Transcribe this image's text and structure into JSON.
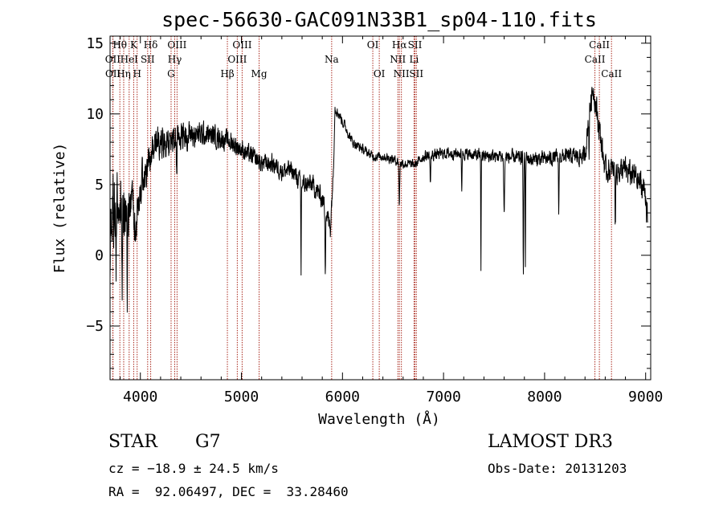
{
  "chart_data": {
    "type": "line",
    "title": "spec-56630-GAC091N33B1_sp04-110.fits",
    "xlabel": "Wavelength (Å)",
    "ylabel": "Flux (relative)",
    "xlim": [
      3700,
      9050
    ],
    "ylim": [
      -8.8,
      15.5
    ],
    "x_ticks": [
      4000,
      5000,
      6000,
      7000,
      8000,
      9000
    ],
    "y_ticks": [
      -5,
      0,
      5,
      10,
      15
    ],
    "x_tick_labels": [
      "4000",
      "5000",
      "6000",
      "7000",
      "8000",
      "9000"
    ],
    "y_tick_labels": [
      "−5",
      "0",
      "5",
      "10",
      "15"
    ],
    "line_color": "#000000",
    "marker_color": "#aa2a1e",
    "lines": [
      {
        "label": "Hθ",
        "wl": 3797,
        "row": 0
      },
      {
        "label": "K",
        "wl": 3934,
        "row": 0
      },
      {
        "label": "Hδ",
        "wl": 4102,
        "row": 0
      },
      {
        "label": "OIII",
        "wl": 4363,
        "row": 0
      },
      {
        "label": "OIII",
        "wl": 5007,
        "row": 0
      },
      {
        "label": "OI",
        "wl": 6300,
        "row": 0
      },
      {
        "label": "Hα",
        "wl": 6563,
        "row": 0
      },
      {
        "label": "SII",
        "wl": 6717,
        "row": 0
      },
      {
        "label": "CaII",
        "wl": 8542,
        "row": 0
      },
      {
        "label": "OII",
        "wl": 3727,
        "row": 1
      },
      {
        "label": "HeI",
        "wl": 3889,
        "row": 1
      },
      {
        "label": "SII",
        "wl": 4072,
        "row": 1
      },
      {
        "label": "Hγ",
        "wl": 4340,
        "row": 1
      },
      {
        "label": "OIII",
        "wl": 4959,
        "row": 1
      },
      {
        "label": "Na",
        "wl": 5893,
        "row": 1
      },
      {
        "label": "NII",
        "wl": 6548,
        "row": 1
      },
      {
        "label": "Li",
        "wl": 6708,
        "row": 1
      },
      {
        "label": "CaII",
        "wl": 8498,
        "row": 1
      },
      {
        "label": "OII",
        "wl": 3729,
        "row": 2
      },
      {
        "label": "Hη",
        "wl": 3835,
        "row": 2
      },
      {
        "label": "H",
        "wl": 3968,
        "row": 2
      },
      {
        "label": "G",
        "wl": 4304,
        "row": 2
      },
      {
        "label": "Hβ",
        "wl": 4861,
        "row": 2
      },
      {
        "label": "Mg",
        "wl": 5175,
        "row": 2
      },
      {
        "label": "OI",
        "wl": 6364,
        "row": 2
      },
      {
        "label": "NII",
        "wl": 6583,
        "row": 2
      },
      {
        "label": "SII",
        "wl": 6731,
        "row": 2
      },
      {
        "label": "CaII",
        "wl": 8662,
        "row": 2
      }
    ],
    "spectrum_anchors": {
      "x": [
        3700,
        3720,
        3760,
        3800,
        3850,
        3900,
        3950,
        4000,
        4100,
        4200,
        4300,
        4400,
        4500,
        4700,
        4900,
        5100,
        5200,
        5300,
        5400,
        5500,
        5600,
        5700,
        5800,
        5880,
        5910,
        5925,
        6000,
        6100,
        6200,
        6300,
        6400,
        6500,
        6560,
        6600,
        6700,
        6720,
        6800,
        7000,
        7200,
        7400,
        7600,
        7800,
        8000,
        8200,
        8400,
        8440,
        8480,
        8520,
        8560,
        8600,
        8700,
        8800,
        8900,
        9000,
        9020
      ],
      "y": [
        0,
        2,
        5,
        4,
        3,
        3,
        2.5,
        5,
        7,
        8,
        8,
        8.5,
        8.5,
        8.5,
        8,
        7,
        6.5,
        6.5,
        6,
        6,
        5,
        5,
        4,
        2,
        6,
        10.5,
        9.5,
        8,
        7.5,
        7,
        7,
        6.8,
        6.6,
        6.5,
        6.4,
        6.4,
        7,
        7.2,
        7.2,
        7,
        7,
        6.8,
        6.8,
        7,
        7,
        10,
        12,
        10,
        8,
        6,
        6,
        6,
        5.5,
        4.5,
        2
      ],
      "noise": [
        4,
        4,
        4,
        3.5,
        3,
        3,
        2.5,
        2,
        2,
        1.7,
        1.7,
        1.5,
        1.5,
        1.2,
        1.1,
        1,
        1,
        1,
        1,
        1,
        1,
        1.1,
        1.1,
        1.2,
        0.8,
        0.6,
        0.6,
        0.5,
        0.5,
        0.5,
        0.5,
        0.5,
        0.5,
        0.5,
        0.5,
        0.5,
        0.6,
        0.6,
        0.6,
        0.7,
        0.7,
        0.8,
        0.8,
        0.8,
        1,
        1.2,
        1.5,
        1.5,
        1.5,
        1.3,
        1.3,
        1.4,
        1.5,
        1.6,
        1.8
      ]
    },
    "absorption_dips": [
      {
        "wl": 3760,
        "depth": 7,
        "width": 4
      },
      {
        "wl": 3820,
        "depth": 6,
        "width": 4
      },
      {
        "wl": 3870,
        "depth": 7,
        "width": 3
      },
      {
        "wl": 4360,
        "depth": 3,
        "width": 4
      },
      {
        "wl": 5590,
        "depth": 6.5,
        "width": 3
      },
      {
        "wl": 5830,
        "depth": 4,
        "width": 4
      },
      {
        "wl": 6563,
        "depth": 3,
        "width": 5
      },
      {
        "wl": 6870,
        "depth": 2,
        "width": 5
      },
      {
        "wl": 7180,
        "depth": 2.5,
        "width": 4
      },
      {
        "wl": 7370,
        "depth": 8,
        "width": 3
      },
      {
        "wl": 7600,
        "depth": 4,
        "width": 6
      },
      {
        "wl": 7790,
        "depth": 7.5,
        "width": 4
      },
      {
        "wl": 7810,
        "depth": 8,
        "width": 3
      },
      {
        "wl": 8140,
        "depth": 4,
        "width": 4
      },
      {
        "wl": 8440,
        "depth": 3,
        "width": 3
      },
      {
        "wl": 8700,
        "depth": 4,
        "width": 4
      }
    ]
  },
  "info": {
    "object_type": "STAR",
    "subclass": "G7",
    "survey": "LAMOST DR3",
    "cz": "cz = −18.9 ± 24.5 km/s",
    "obs_date": "Obs-Date: 20131203",
    "coords": "RA =  92.06497, DEC =  33.28460"
  }
}
